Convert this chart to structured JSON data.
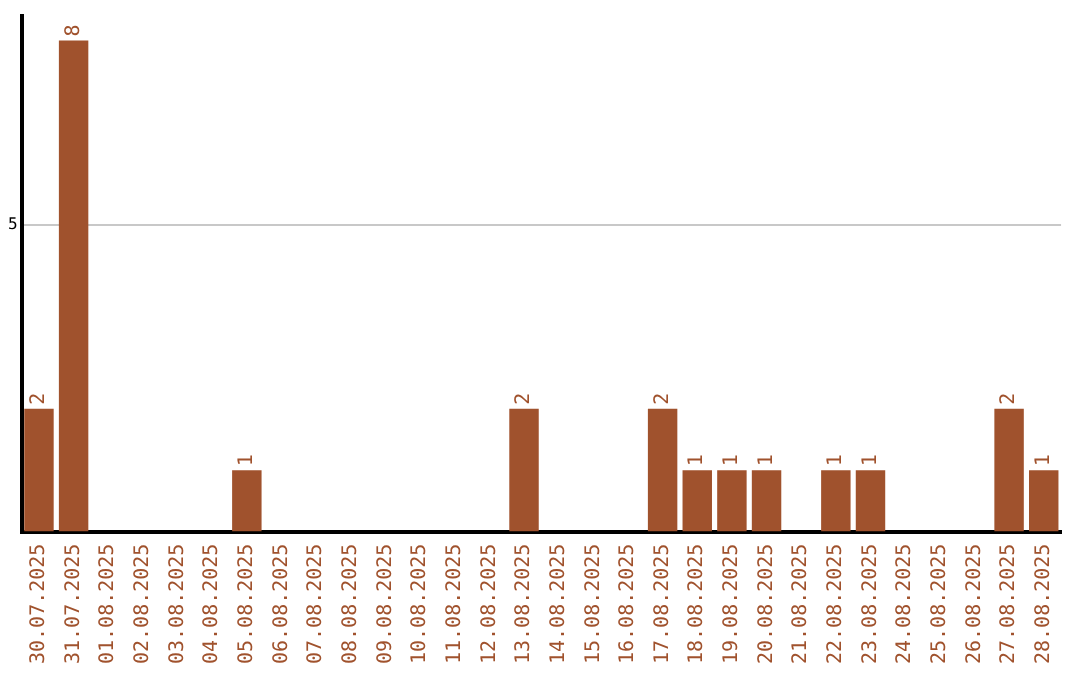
{
  "chart_data": {
    "type": "bar",
    "categories": [
      "30.07.2025",
      "31.07.2025",
      "01.08.2025",
      "02.08.2025",
      "03.08.2025",
      "04.08.2025",
      "05.08.2025",
      "06.08.2025",
      "07.08.2025",
      "08.08.2025",
      "09.08.2025",
      "10.08.2025",
      "11.08.2025",
      "12.08.2025",
      "13.08.2025",
      "14.08.2025",
      "15.08.2025",
      "16.08.2025",
      "17.08.2025",
      "18.08.2025",
      "19.08.2025",
      "20.08.2025",
      "21.08.2025",
      "22.08.2025",
      "23.08.2025",
      "24.08.2025",
      "25.08.2025",
      "26.08.2025",
      "27.08.2025",
      "28.08.2025"
    ],
    "values": [
      2,
      8,
      0,
      0,
      0,
      0,
      1,
      0,
      0,
      0,
      0,
      0,
      0,
      0,
      2,
      0,
      0,
      0,
      2,
      1,
      1,
      1,
      0,
      1,
      1,
      0,
      0,
      0,
      2,
      1
    ],
    "value_labels": [
      "2",
      "8",
      null,
      null,
      null,
      null,
      "1",
      null,
      null,
      null,
      null,
      null,
      null,
      null,
      "2",
      null,
      null,
      null,
      "2",
      "1",
      "1",
      "1",
      null,
      "1",
      "1",
      null,
      null,
      null,
      "2",
      "1"
    ],
    "color": "#a0522d",
    "ylim": [
      0,
      8.4
    ],
    "yticks": [
      5
    ],
    "grid": "y",
    "legend": false
  }
}
